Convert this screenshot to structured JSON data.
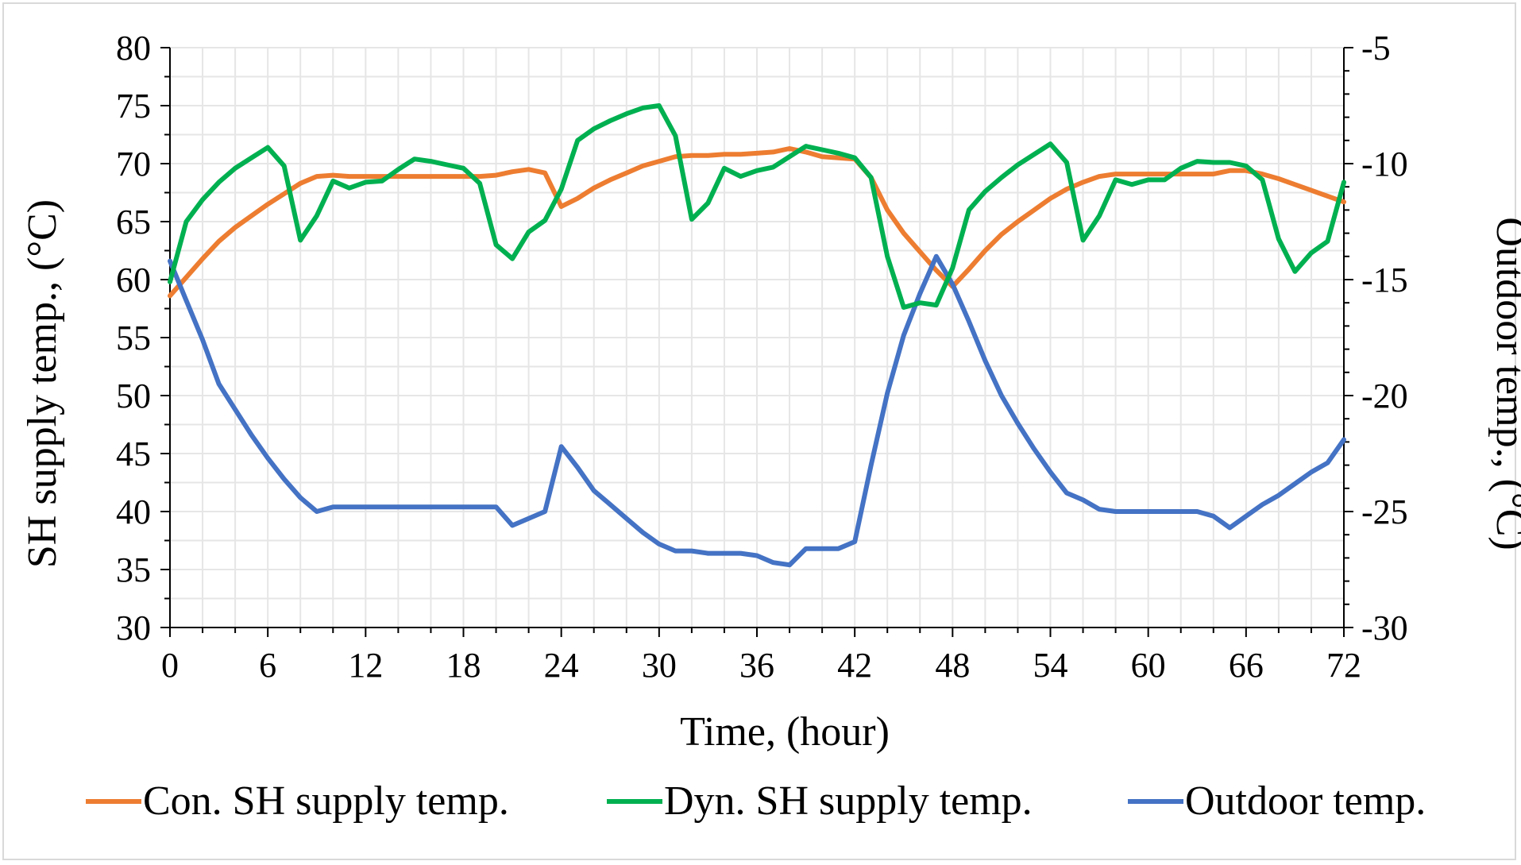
{
  "chart_data": {
    "type": "line",
    "title": "",
    "xlabel": "Time, (hour)",
    "ylabel": "SH supply temp., (°C)",
    "y2label": "Outdoor temp., (°C)",
    "xlim": [
      0,
      72
    ],
    "ylim": [
      30,
      80
    ],
    "y2lim": [
      -30,
      -5
    ],
    "xticks": [
      0,
      6,
      12,
      18,
      24,
      30,
      36,
      42,
      48,
      54,
      60,
      66,
      72
    ],
    "yticks": [
      30,
      35,
      40,
      45,
      50,
      55,
      60,
      65,
      70,
      75,
      80
    ],
    "y2ticks": [
      -30,
      -25,
      -20,
      -15,
      -10,
      -5
    ],
    "grid": true,
    "legend_position": "bottom",
    "series": [
      {
        "name": "Con. SH supply temp.",
        "color": "#ED7D31",
        "axis": "left",
        "x": [
          0,
          1,
          2,
          3,
          4,
          5,
          6,
          7,
          8,
          9,
          10,
          11,
          12,
          13,
          14,
          15,
          16,
          17,
          18,
          19,
          20,
          21,
          22,
          23,
          24,
          25,
          26,
          27,
          28,
          29,
          30,
          31,
          32,
          33,
          34,
          35,
          36,
          37,
          38,
          39,
          40,
          41,
          42,
          43,
          44,
          45,
          46,
          47,
          48,
          49,
          50,
          51,
          52,
          53,
          54,
          55,
          56,
          57,
          58,
          59,
          60,
          61,
          62,
          63,
          64,
          65,
          66,
          67,
          68,
          69,
          70,
          71,
          72
        ],
        "values": [
          58.6,
          60.2,
          61.8,
          63.3,
          64.5,
          65.5,
          66.5,
          67.4,
          68.3,
          68.9,
          69.0,
          68.9,
          68.9,
          68.9,
          68.9,
          68.9,
          68.9,
          68.9,
          68.9,
          68.9,
          69.0,
          69.3,
          69.5,
          69.2,
          66.3,
          67.0,
          67.9,
          68.6,
          69.2,
          69.8,
          70.2,
          70.6,
          70.7,
          70.7,
          70.8,
          70.8,
          70.9,
          71.0,
          71.3,
          71.0,
          70.6,
          70.5,
          70.4,
          68.8,
          66.0,
          64.0,
          62.4,
          60.8,
          59.4,
          60.9,
          62.5,
          63.9,
          65.0,
          66.0,
          67.0,
          67.8,
          68.4,
          68.9,
          69.1,
          69.1,
          69.1,
          69.1,
          69.1,
          69.1,
          69.1,
          69.4,
          69.4,
          69.1,
          68.7,
          68.2,
          67.7,
          67.2,
          66.7
        ]
      },
      {
        "name": "Dyn. SH supply temp.",
        "color": "#00B050",
        "axis": "left",
        "x": [
          0,
          1,
          2,
          3,
          4,
          5,
          6,
          7,
          8,
          9,
          10,
          11,
          12,
          13,
          14,
          15,
          16,
          17,
          18,
          19,
          20,
          21,
          22,
          23,
          24,
          25,
          26,
          27,
          28,
          29,
          30,
          31,
          32,
          33,
          34,
          35,
          36,
          37,
          38,
          39,
          40,
          41,
          42,
          43,
          44,
          45,
          46,
          47,
          48,
          49,
          50,
          51,
          52,
          53,
          54,
          55,
          56,
          57,
          58,
          59,
          60,
          61,
          62,
          63,
          64,
          65,
          66,
          67,
          68,
          69,
          70,
          71,
          72
        ],
        "values": [
          59.8,
          65.0,
          66.9,
          68.4,
          69.6,
          70.5,
          71.4,
          69.8,
          63.4,
          65.5,
          68.5,
          67.9,
          68.4,
          68.5,
          69.5,
          70.4,
          70.2,
          69.9,
          69.6,
          68.3,
          63.0,
          61.8,
          64.1,
          65.1,
          67.8,
          72.0,
          73.0,
          73.7,
          74.3,
          74.8,
          75.0,
          72.4,
          65.2,
          66.6,
          69.6,
          68.9,
          69.4,
          69.7,
          70.6,
          71.5,
          71.2,
          70.9,
          70.5,
          68.8,
          62.0,
          57.6,
          58.0,
          57.8,
          61.0,
          66.0,
          67.6,
          68.8,
          69.9,
          70.8,
          71.7,
          70.1,
          63.4,
          65.5,
          68.6,
          68.2,
          68.6,
          68.6,
          69.6,
          70.2,
          70.1,
          70.1,
          69.8,
          68.6,
          63.5,
          60.7,
          62.3,
          63.3,
          68.4
        ]
      },
      {
        "name": "Outdoor temp.",
        "color": "#4472C4",
        "axis": "right",
        "x": [
          0,
          1,
          2,
          3,
          4,
          5,
          6,
          7,
          8,
          9,
          10,
          11,
          12,
          13,
          14,
          15,
          16,
          17,
          18,
          19,
          20,
          21,
          22,
          23,
          24,
          25,
          26,
          27,
          28,
          29,
          30,
          31,
          32,
          33,
          34,
          35,
          36,
          37,
          38,
          39,
          40,
          41,
          42,
          43,
          44,
          45,
          46,
          47,
          48,
          49,
          50,
          51,
          52,
          53,
          54,
          55,
          56,
          57,
          58,
          59,
          60,
          61,
          62,
          63,
          64,
          65,
          66,
          67,
          68,
          69,
          70,
          71,
          72
        ],
        "values": [
          -14.2,
          -15.9,
          -17.6,
          -19.5,
          -20.6,
          -21.7,
          -22.7,
          -23.6,
          -24.4,
          -25.0,
          -24.8,
          -24.8,
          -24.8,
          -24.8,
          -24.8,
          -24.8,
          -24.8,
          -24.8,
          -24.8,
          -24.8,
          -24.8,
          -25.6,
          -25.3,
          -25.0,
          -22.2,
          -23.1,
          -24.1,
          -24.7,
          -25.3,
          -25.9,
          -26.4,
          -26.7,
          -26.7,
          -26.8,
          -26.8,
          -26.8,
          -26.9,
          -27.2,
          -27.3,
          -26.6,
          -26.6,
          -26.6,
          -26.3,
          -23.0,
          -19.9,
          -17.4,
          -15.6,
          -14.0,
          -15.2,
          -16.8,
          -18.5,
          -20.0,
          -21.2,
          -22.3,
          -23.3,
          -24.2,
          -24.5,
          -24.9,
          -25.0,
          -25.0,
          -25.0,
          -25.0,
          -25.0,
          -25.0,
          -25.2,
          -25.7,
          -25.2,
          -24.7,
          -24.3,
          -23.8,
          -23.3,
          -22.9,
          -21.9
        ]
      }
    ]
  }
}
